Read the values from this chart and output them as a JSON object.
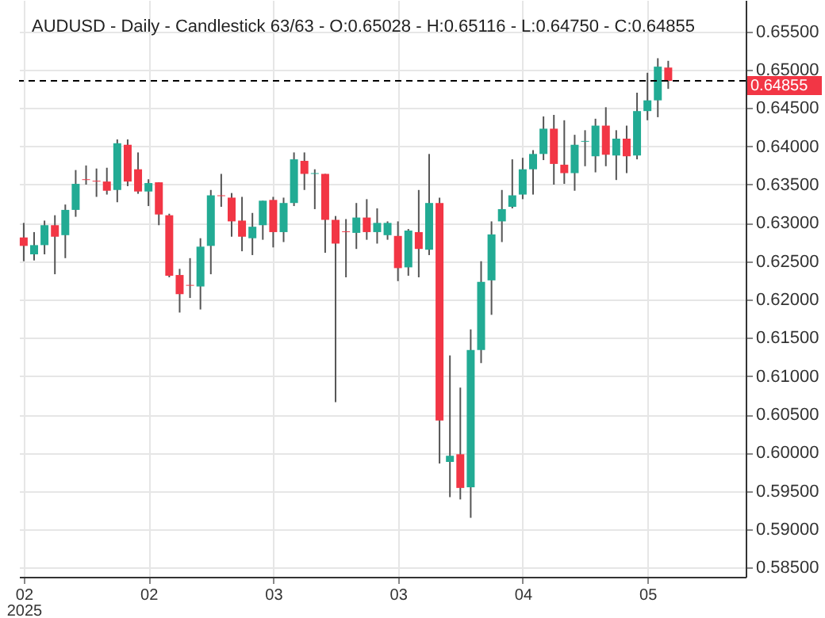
{
  "chart_data": {
    "type": "candlestick",
    "title": "AUDUSD - Daily - Candlestick   63/63 - O:0.65028 - H:0.65116 - L:0.64750 - C:0.64855",
    "categories": [
      "02\n2025",
      null,
      null,
      null,
      null,
      null,
      null,
      null,
      null,
      null,
      null,
      null,
      "02",
      null,
      null,
      null,
      null,
      null,
      null,
      null,
      null,
      null,
      null,
      null,
      "03",
      null,
      null,
      null,
      null,
      null,
      null,
      null,
      null,
      null,
      null,
      null,
      "03",
      null,
      null,
      null,
      null,
      null,
      null,
      null,
      null,
      null,
      null,
      null,
      "04",
      null,
      null,
      null,
      null,
      null,
      null,
      null,
      null,
      null,
      null,
      null,
      "05",
      null,
      null
    ],
    "ohlc": [
      [
        0.6281,
        0.63,
        0.625,
        0.627
      ],
      [
        0.6259,
        0.6288,
        0.6251,
        0.6271
      ],
      [
        0.6271,
        0.6303,
        0.6259,
        0.6297
      ],
      [
        0.6297,
        0.631,
        0.6233,
        0.6282
      ],
      [
        0.6284,
        0.6324,
        0.6254,
        0.6317
      ],
      [
        0.6317,
        0.6369,
        0.6308,
        0.6351
      ],
      [
        0.6357,
        0.6375,
        0.635,
        0.6356
      ],
      [
        0.6355,
        0.6371,
        0.6334,
        0.6354
      ],
      [
        0.6354,
        0.6372,
        0.6337,
        0.6342
      ],
      [
        0.6343,
        0.6409,
        0.6327,
        0.6404
      ],
      [
        0.6402,
        0.6409,
        0.6348,
        0.6354
      ],
      [
        0.637,
        0.6392,
        0.6338,
        0.6341
      ],
      [
        0.6341,
        0.6357,
        0.6322,
        0.6352
      ],
      [
        0.6353,
        0.6353,
        0.6297,
        0.6311
      ],
      [
        0.631,
        0.6312,
        0.6229,
        0.6231
      ],
      [
        0.6232,
        0.624,
        0.6183,
        0.6207
      ],
      [
        0.6219,
        0.6254,
        0.6202,
        0.6218
      ],
      [
        0.6217,
        0.628,
        0.6187,
        0.6269
      ],
      [
        0.627,
        0.6343,
        0.6233,
        0.6336
      ],
      [
        0.6336,
        0.6364,
        0.6321,
        0.6335
      ],
      [
        0.6333,
        0.6339,
        0.6282,
        0.6302
      ],
      [
        0.6303,
        0.6334,
        0.6263,
        0.6282
      ],
      [
        0.628,
        0.6313,
        0.6258,
        0.6295
      ],
      [
        0.6297,
        0.6329,
        0.6278,
        0.6329
      ],
      [
        0.633,
        0.6334,
        0.6268,
        0.6288
      ],
      [
        0.6288,
        0.6333,
        0.6275,
        0.6326
      ],
      [
        0.6326,
        0.6392,
        0.6322,
        0.6383
      ],
      [
        0.6381,
        0.6392,
        0.6343,
        0.6364
      ],
      [
        0.6364,
        0.637,
        0.6318,
        0.6365
      ],
      [
        0.6364,
        0.6364,
        0.6261,
        0.6304
      ],
      [
        0.6304,
        0.6309,
        0.6066,
        0.6273
      ],
      [
        0.6289,
        0.6305,
        0.6229,
        0.6288
      ],
      [
        0.6287,
        0.6326,
        0.6266,
        0.6307
      ],
      [
        0.6307,
        0.6331,
        0.6278,
        0.6288
      ],
      [
        0.6288,
        0.6319,
        0.6273,
        0.63
      ],
      [
        0.6284,
        0.6302,
        0.6278,
        0.63
      ],
      [
        0.6283,
        0.6302,
        0.6224,
        0.6241
      ],
      [
        0.6242,
        0.6292,
        0.6231,
        0.629
      ],
      [
        0.6288,
        0.6343,
        0.6229,
        0.6266
      ],
      [
        0.6265,
        0.639,
        0.6258,
        0.6326
      ],
      [
        0.6326,
        0.6333,
        0.5986,
        0.6042
      ],
      [
        0.5988,
        0.6127,
        0.5942,
        0.5996
      ],
      [
        0.5998,
        0.6085,
        0.5939,
        0.5954
      ],
      [
        0.5955,
        0.6161,
        0.5915,
        0.6134
      ],
      [
        0.6134,
        0.625,
        0.6117,
        0.6223
      ],
      [
        0.6225,
        0.6302,
        0.618,
        0.6285
      ],
      [
        0.6302,
        0.6343,
        0.6275,
        0.6318
      ],
      [
        0.6321,
        0.6383,
        0.6319,
        0.6336
      ],
      [
        0.6337,
        0.6385,
        0.6331,
        0.637
      ],
      [
        0.637,
        0.6395,
        0.6337,
        0.639
      ],
      [
        0.639,
        0.6439,
        0.6382,
        0.6423
      ],
      [
        0.6423,
        0.6441,
        0.635,
        0.6377
      ],
      [
        0.6376,
        0.6434,
        0.6351,
        0.6365
      ],
      [
        0.6365,
        0.6415,
        0.6342,
        0.6402
      ],
      [
        0.6406,
        0.6421,
        0.6374,
        0.6407
      ],
      [
        0.6387,
        0.6436,
        0.6366,
        0.6427
      ],
      [
        0.6427,
        0.6451,
        0.6374,
        0.6389
      ],
      [
        0.6388,
        0.6421,
        0.6356,
        0.641
      ],
      [
        0.641,
        0.6427,
        0.6365,
        0.6387
      ],
      [
        0.6388,
        0.647,
        0.6383,
        0.6446
      ],
      [
        0.6446,
        0.6496,
        0.6434,
        0.646
      ],
      [
        0.646,
        0.6515,
        0.6438,
        0.6504
      ],
      [
        0.65028,
        0.65116,
        0.6475,
        0.64855
      ]
    ],
    "colors": [
      "#f23645",
      "#22ab94",
      "#22ab94",
      "#f23645",
      "#22ab94",
      "#22ab94",
      "#f23645",
      "#f23645",
      "#f23645",
      "#22ab94",
      "#f23645",
      "#f23645",
      "#22ab94",
      "#f23645",
      "#f23645",
      "#f23645",
      "#f23645",
      "#22ab94",
      "#22ab94",
      "#f23645",
      "#f23645",
      "#f23645",
      "#22ab94",
      "#22ab94",
      "#f23645",
      "#22ab94",
      "#22ab94",
      "#f23645",
      "#22ab94",
      "#f23645",
      "#f23645",
      "#f23645",
      "#22ab94",
      "#f23645",
      "#22ab94",
      "#22ab94",
      "#f23645",
      "#22ab94",
      "#f23645",
      "#22ab94",
      "#f23645",
      "#22ab94",
      "#f23645",
      "#22ab94",
      "#22ab94",
      "#22ab94",
      "#22ab94",
      "#22ab94",
      "#22ab94",
      "#22ab94",
      "#22ab94",
      "#f23645",
      "#f23645",
      "#22ab94",
      "#22ab94",
      "#22ab94",
      "#f23645",
      "#22ab94",
      "#f23645",
      "#22ab94",
      "#22ab94",
      "#22ab94",
      "#f23645"
    ],
    "ylim": [
      0.5838,
      0.6591
    ],
    "yticks": [
      {
        "value": 0.585,
        "label": "0.58500"
      },
      {
        "value": 0.59,
        "label": "0.59000"
      },
      {
        "value": 0.595,
        "label": "0.59500"
      },
      {
        "value": 0.6,
        "label": "0.60000"
      },
      {
        "value": 0.605,
        "label": "0.60500"
      },
      {
        "value": 0.61,
        "label": "0.61000"
      },
      {
        "value": 0.615,
        "label": "0.61500"
      },
      {
        "value": 0.62,
        "label": "0.62000"
      },
      {
        "value": 0.625,
        "label": "0.62500"
      },
      {
        "value": 0.63,
        "label": "0.63000"
      },
      {
        "value": 0.635,
        "label": "0.63500"
      },
      {
        "value": 0.64,
        "label": "0.64000"
      },
      {
        "value": 0.645,
        "label": "0.64500"
      },
      {
        "value": 0.65,
        "label": "0.65000"
      },
      {
        "value": 0.655,
        "label": "0.65500"
      }
    ],
    "ref_lines": [
      {
        "axis": "y",
        "value": 0.64855,
        "label": "0.64855",
        "line_style": "dashed"
      }
    ],
    "grid": true
  }
}
